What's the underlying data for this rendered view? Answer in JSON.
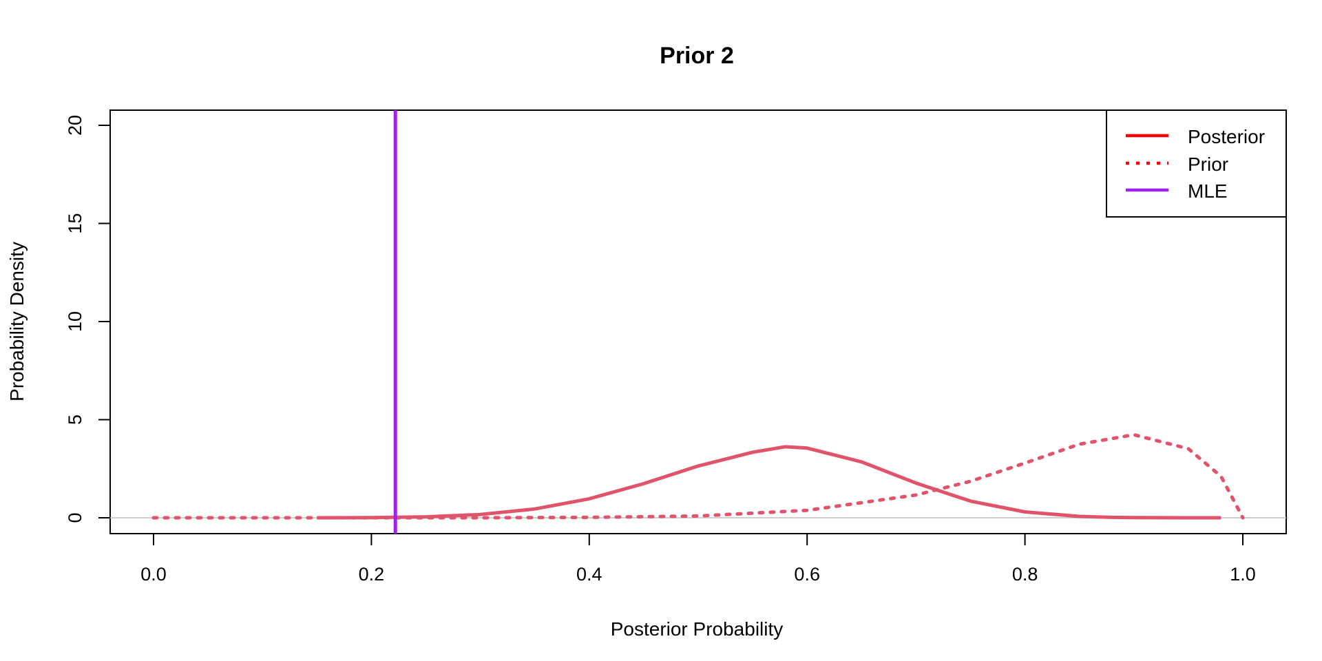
{
  "chart_data": {
    "type": "line",
    "title": "Prior 2",
    "xlabel": "Posterior Probability",
    "ylabel": "Probability Density",
    "xlim": [
      0,
      1
    ],
    "ylim": [
      0,
      20
    ],
    "x_ticks": [
      "0.0",
      "0.2",
      "0.4",
      "0.6",
      "0.8",
      "1.0"
    ],
    "y_ticks": [
      "0",
      "5",
      "10",
      "15",
      "20"
    ],
    "grid": false,
    "legend_position": "top-right",
    "legend": [
      {
        "label": "Posterior",
        "style": "solid",
        "color": "#ff0000"
      },
      {
        "label": "Prior",
        "style": "dotted",
        "color": "#ff0000"
      },
      {
        "label": "MLE",
        "style": "solid",
        "color": "#a020f0"
      }
    ],
    "series": [
      {
        "name": "Posterior",
        "style": "solid",
        "color": "#df536b",
        "x": [
          0.15,
          0.2,
          0.25,
          0.3,
          0.35,
          0.4,
          0.45,
          0.5,
          0.55,
          0.58,
          0.6,
          0.65,
          0.7,
          0.75,
          0.8,
          0.85,
          0.88,
          0.9,
          0.95,
          0.98
        ],
        "values": [
          0.0,
          0.01,
          0.05,
          0.17,
          0.45,
          0.97,
          1.74,
          2.64,
          3.34,
          3.62,
          3.55,
          2.85,
          1.77,
          0.85,
          0.3,
          0.07,
          0.02,
          0.01,
          0.0,
          0.0
        ]
      },
      {
        "name": "Prior",
        "style": "dotted",
        "color": "#df536b",
        "x": [
          0.0,
          0.1,
          0.2,
          0.3,
          0.4,
          0.5,
          0.6,
          0.7,
          0.75,
          0.8,
          0.85,
          0.9,
          0.95,
          0.98,
          1.0
        ],
        "values": [
          0.0,
          0.0,
          0.0,
          0.0,
          0.02,
          0.09,
          0.38,
          1.16,
          1.86,
          2.79,
          3.75,
          4.23,
          3.52,
          2.11,
          0.0
        ]
      }
    ],
    "reference_lines": [
      {
        "name": "MLE",
        "x": 0.222,
        "color": "#a020f0"
      },
      {
        "name": "zero",
        "y": 0,
        "color": "#bebebe"
      }
    ]
  }
}
